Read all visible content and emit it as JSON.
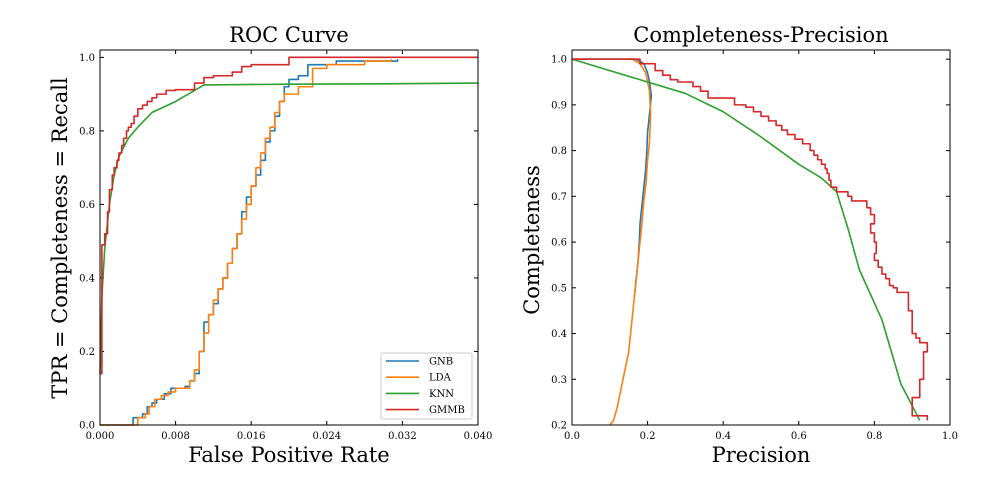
{
  "colors": {
    "GNB": "#1f77b4",
    "LDA": "#ff7f0e",
    "KNN": "#2ca02c",
    "GMMB": "#d62728"
  },
  "chart_data": [
    {
      "type": "line",
      "title": "ROC Curve",
      "xlabel": "False Positive Rate",
      "ylabel": "TPR = Completeness = Recall",
      "xlim": [
        0,
        0.04
      ],
      "ylim": [
        0,
        1.02
      ],
      "xticks": [
        0,
        0.008,
        0.016,
        0.024,
        0.032,
        0.04
      ],
      "xtick_labels": [
        "0.000",
        "0.008",
        "0.016",
        "0.024",
        "0.032",
        "0.040"
      ],
      "yticks": [
        0,
        0.2,
        0.4,
        0.6,
        0.8,
        1.0
      ],
      "ytick_labels": [
        "0.0",
        "0.2",
        "0.4",
        "0.6",
        "0.8",
        "1.0"
      ],
      "grid": false,
      "legend": {
        "position": "lower-right",
        "entries": [
          "GNB",
          "LDA",
          "KNN",
          "GMMB"
        ]
      },
      "series": [
        {
          "name": "GNB",
          "step": true,
          "points": [
            [
              0.0,
              0.0
            ],
            [
              0.003,
              0.0
            ],
            [
              0.0035,
              0.02
            ],
            [
              0.0045,
              0.03
            ],
            [
              0.005,
              0.05
            ],
            [
              0.0055,
              0.06
            ],
            [
              0.006,
              0.07
            ],
            [
              0.0068,
              0.085
            ],
            [
              0.0075,
              0.1
            ],
            [
              0.009,
              0.105
            ],
            [
              0.0095,
              0.12
            ],
            [
              0.01,
              0.14
            ],
            [
              0.0105,
              0.2
            ],
            [
              0.011,
              0.28
            ],
            [
              0.0115,
              0.3
            ],
            [
              0.012,
              0.33
            ],
            [
              0.0125,
              0.37
            ],
            [
              0.013,
              0.4
            ],
            [
              0.0135,
              0.44
            ],
            [
              0.014,
              0.48
            ],
            [
              0.0145,
              0.52
            ],
            [
              0.015,
              0.58
            ],
            [
              0.0155,
              0.62
            ],
            [
              0.016,
              0.65
            ],
            [
              0.0165,
              0.68
            ],
            [
              0.017,
              0.72
            ],
            [
              0.0175,
              0.77
            ],
            [
              0.018,
              0.8
            ],
            [
              0.0185,
              0.84
            ],
            [
              0.019,
              0.88
            ],
            [
              0.0195,
              0.92
            ],
            [
              0.02,
              0.94
            ],
            [
              0.021,
              0.95
            ],
            [
              0.022,
              0.98
            ],
            [
              0.025,
              0.99
            ],
            [
              0.0315,
              0.995
            ]
          ]
        },
        {
          "name": "LDA",
          "step": true,
          "points": [
            [
              0.0,
              0.0
            ],
            [
              0.0035,
              0.0
            ],
            [
              0.004,
              0.02
            ],
            [
              0.0048,
              0.03
            ],
            [
              0.0052,
              0.05
            ],
            [
              0.0058,
              0.07
            ],
            [
              0.0065,
              0.08
            ],
            [
              0.0072,
              0.09
            ],
            [
              0.008,
              0.1
            ],
            [
              0.0095,
              0.12
            ],
            [
              0.01,
              0.15
            ],
            [
              0.0105,
              0.2
            ],
            [
              0.011,
              0.25
            ],
            [
              0.0115,
              0.3
            ],
            [
              0.012,
              0.34
            ],
            [
              0.0125,
              0.37
            ],
            [
              0.013,
              0.4
            ],
            [
              0.0135,
              0.44
            ],
            [
              0.014,
              0.48
            ],
            [
              0.0145,
              0.52
            ],
            [
              0.015,
              0.56
            ],
            [
              0.0155,
              0.6
            ],
            [
              0.016,
              0.65
            ],
            [
              0.0165,
              0.7
            ],
            [
              0.017,
              0.74
            ],
            [
              0.0175,
              0.78
            ],
            [
              0.018,
              0.81
            ],
            [
              0.0185,
              0.85
            ],
            [
              0.019,
              0.88
            ],
            [
              0.0195,
              0.9
            ],
            [
              0.021,
              0.92
            ],
            [
              0.0225,
              0.97
            ],
            [
              0.024,
              0.98
            ],
            [
              0.028,
              0.99
            ],
            [
              0.0308,
              0.995
            ]
          ]
        },
        {
          "name": "KNN",
          "step": false,
          "points": [
            [
              0.0,
              0.14
            ],
            [
              0.0002,
              0.35
            ],
            [
              0.0005,
              0.48
            ],
            [
              0.001,
              0.6
            ],
            [
              0.0015,
              0.68
            ],
            [
              0.002,
              0.73
            ],
            [
              0.003,
              0.78
            ],
            [
              0.004,
              0.81
            ],
            [
              0.0055,
              0.85
            ],
            [
              0.008,
              0.88
            ],
            [
              0.011,
              0.925
            ],
            [
              0.02,
              0.927
            ],
            [
              0.03,
              0.928
            ],
            [
              0.04,
              0.93
            ]
          ]
        },
        {
          "name": "GMMB",
          "step": true,
          "points": [
            [
              0.0,
              0.14
            ],
            [
              0.0002,
              0.49
            ],
            [
              0.0005,
              0.52
            ],
            [
              0.0008,
              0.58
            ],
            [
              0.001,
              0.64
            ],
            [
              0.0013,
              0.68
            ],
            [
              0.0015,
              0.7
            ],
            [
              0.0018,
              0.72
            ],
            [
              0.002,
              0.74
            ],
            [
              0.0023,
              0.76
            ],
            [
              0.0025,
              0.78
            ],
            [
              0.0028,
              0.8
            ],
            [
              0.003,
              0.81
            ],
            [
              0.0033,
              0.82
            ],
            [
              0.0036,
              0.84
            ],
            [
              0.004,
              0.86
            ],
            [
              0.0045,
              0.87
            ],
            [
              0.005,
              0.88
            ],
            [
              0.0055,
              0.89
            ],
            [
              0.006,
              0.9
            ],
            [
              0.007,
              0.91
            ],
            [
              0.008,
              0.912
            ],
            [
              0.01,
              0.93
            ],
            [
              0.011,
              0.945
            ],
            [
              0.012,
              0.95
            ],
            [
              0.014,
              0.96
            ],
            [
              0.015,
              0.975
            ],
            [
              0.016,
              0.98
            ],
            [
              0.02,
              1.0
            ],
            [
              0.04,
              1.0
            ]
          ]
        }
      ]
    },
    {
      "type": "line",
      "title": "Completeness-Precision",
      "xlabel": "Precision",
      "ylabel": "Completeness",
      "xlim": [
        0,
        1.0
      ],
      "ylim": [
        0.2,
        1.02
      ],
      "xticks": [
        0,
        0.2,
        0.4,
        0.6,
        0.8,
        1.0
      ],
      "xtick_labels": [
        "0.0",
        "0.2",
        "0.4",
        "0.6",
        "0.8",
        "1.0"
      ],
      "yticks": [
        0.2,
        0.3,
        0.4,
        0.5,
        0.6,
        0.7,
        0.8,
        0.9,
        1.0
      ],
      "ytick_labels": [
        "0.2",
        "0.3",
        "0.4",
        "0.5",
        "0.6",
        "0.7",
        "0.8",
        "0.9",
        "1.0"
      ],
      "grid": false,
      "series": [
        {
          "name": "GNB",
          "step": false,
          "points": [
            [
              0.0,
              1.0
            ],
            [
              0.17,
              1.0
            ],
            [
              0.19,
              0.99
            ],
            [
              0.2,
              0.97
            ],
            [
              0.205,
              0.95
            ],
            [
              0.21,
              0.92
            ],
            [
              0.205,
              0.88
            ],
            [
              0.2,
              0.84
            ],
            [
              0.198,
              0.8
            ],
            [
              0.195,
              0.76
            ],
            [
              0.19,
              0.72
            ],
            [
              0.185,
              0.68
            ],
            [
              0.18,
              0.64
            ],
            [
              0.178,
              0.6
            ],
            [
              0.175,
              0.56
            ],
            [
              0.17,
              0.52
            ],
            [
              0.165,
              0.48
            ]
          ]
        },
        {
          "name": "LDA",
          "step": false,
          "points": [
            [
              0.0,
              1.0
            ],
            [
              0.16,
              1.0
            ],
            [
              0.18,
              0.99
            ],
            [
              0.195,
              0.97
            ],
            [
              0.205,
              0.93
            ],
            [
              0.208,
              0.88
            ],
            [
              0.205,
              0.82
            ],
            [
              0.2,
              0.78
            ],
            [
              0.196,
              0.73
            ],
            [
              0.19,
              0.69
            ],
            [
              0.185,
              0.64
            ],
            [
              0.18,
              0.6
            ],
            [
              0.175,
              0.56
            ],
            [
              0.17,
              0.52
            ],
            [
              0.165,
              0.48
            ],
            [
              0.16,
              0.44
            ],
            [
              0.155,
              0.4
            ],
            [
              0.15,
              0.36
            ],
            [
              0.14,
              0.32
            ],
            [
              0.13,
              0.28
            ],
            [
              0.12,
              0.24
            ],
            [
              0.11,
              0.21
            ],
            [
              0.1,
              0.2
            ]
          ]
        },
        {
          "name": "KNN",
          "step": false,
          "points": [
            [
              0.0,
              1.0
            ],
            [
              0.1,
              0.975
            ],
            [
              0.2,
              0.95
            ],
            [
              0.3,
              0.925
            ],
            [
              0.4,
              0.885
            ],
            [
              0.5,
              0.83
            ],
            [
              0.6,
              0.77
            ],
            [
              0.66,
              0.74
            ],
            [
              0.7,
              0.71
            ],
            [
              0.73,
              0.63
            ],
            [
              0.76,
              0.54
            ],
            [
              0.82,
              0.43
            ],
            [
              0.87,
              0.29
            ],
            [
              0.92,
              0.21
            ]
          ]
        },
        {
          "name": "GMMB",
          "step": true,
          "points": [
            [
              0.0,
              1.0
            ],
            [
              0.16,
              1.0
            ],
            [
              0.18,
              0.99
            ],
            [
              0.22,
              0.975
            ],
            [
              0.24,
              0.965
            ],
            [
              0.26,
              0.955
            ],
            [
              0.28,
              0.95
            ],
            [
              0.32,
              0.94
            ],
            [
              0.34,
              0.93
            ],
            [
              0.36,
              0.915
            ],
            [
              0.43,
              0.9
            ],
            [
              0.46,
              0.895
            ],
            [
              0.48,
              0.885
            ],
            [
              0.5,
              0.875
            ],
            [
              0.52,
              0.865
            ],
            [
              0.54,
              0.855
            ],
            [
              0.555,
              0.845
            ],
            [
              0.57,
              0.835
            ],
            [
              0.59,
              0.825
            ],
            [
              0.61,
              0.815
            ],
            [
              0.63,
              0.8
            ],
            [
              0.64,
              0.79
            ],
            [
              0.65,
              0.78
            ],
            [
              0.66,
              0.77
            ],
            [
              0.67,
              0.76
            ],
            [
              0.675,
              0.75
            ],
            [
              0.68,
              0.735
            ],
            [
              0.685,
              0.72
            ],
            [
              0.7,
              0.71
            ],
            [
              0.73,
              0.7
            ],
            [
              0.74,
              0.69
            ],
            [
              0.78,
              0.675
            ],
            [
              0.79,
              0.66
            ],
            [
              0.8,
              0.64
            ],
            [
              0.79,
              0.62
            ],
            [
              0.8,
              0.6
            ],
            [
              0.805,
              0.575
            ],
            [
              0.8,
              0.56
            ],
            [
              0.81,
              0.545
            ],
            [
              0.82,
              0.53
            ],
            [
              0.83,
              0.52
            ],
            [
              0.84,
              0.505
            ],
            [
              0.85,
              0.5
            ],
            [
              0.86,
              0.49
            ],
            [
              0.89,
              0.485
            ],
            [
              0.89,
              0.45
            ],
            [
              0.9,
              0.42
            ],
            [
              0.9,
              0.4
            ],
            [
              0.91,
              0.39
            ],
            [
              0.92,
              0.38
            ],
            [
              0.94,
              0.36
            ],
            [
              0.93,
              0.3
            ],
            [
              0.92,
              0.26
            ],
            [
              0.9,
              0.22
            ],
            [
              0.94,
              0.21
            ]
          ]
        }
      ]
    }
  ]
}
